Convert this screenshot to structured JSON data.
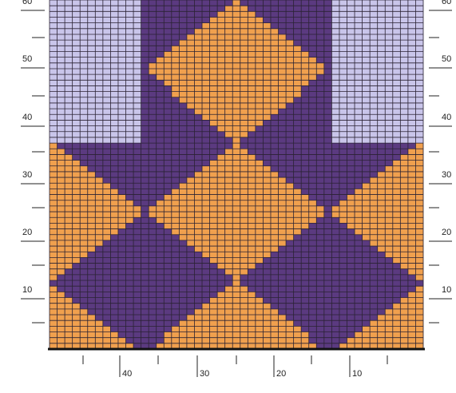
{
  "row_labels_left": [
    "60",
    "50",
    "40",
    "30",
    "20",
    "10"
  ],
  "row_labels_right": [
    "60",
    "50",
    "40",
    "30",
    "20",
    "10"
  ],
  "column_labels": [
    "40",
    "30",
    "20",
    "10"
  ]
}
